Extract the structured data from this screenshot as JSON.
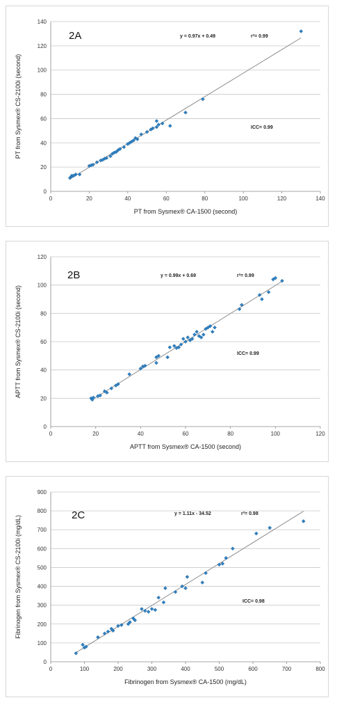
{
  "chart_data": [
    {
      "type": "scatter",
      "panel_label": "2A",
      "xlabel": "PT from Sysmex® CA-1500 (second)",
      "ylabel": "PT from Sysmex® CS-2100i (second)",
      "xlim": [
        0,
        140
      ],
      "ylim": [
        0,
        140
      ],
      "xticks": [
        0,
        20,
        40,
        60,
        80,
        100,
        120,
        140
      ],
      "yticks": [
        0,
        20,
        40,
        60,
        80,
        100,
        120,
        140
      ],
      "grid": "horizontal",
      "equation": "y = 0.97x + 0.49",
      "r2": "r²= 0.99",
      "icc": "ICC= 0.99",
      "color": "#2f7fbf",
      "trendline": {
        "slope": 0.97,
        "intercept": 0.49,
        "x_range": [
          10,
          130
        ]
      },
      "points": [
        [
          10,
          11
        ],
        [
          10.5,
          12
        ],
        [
          11,
          12.5
        ],
        [
          11,
          13
        ],
        [
          12,
          13
        ],
        [
          13,
          14
        ],
        [
          15,
          14
        ],
        [
          20,
          21
        ],
        [
          21,
          21.5
        ],
        [
          22,
          22
        ],
        [
          24,
          24
        ],
        [
          26,
          25.5
        ],
        [
          27,
          26
        ],
        [
          28,
          27
        ],
        [
          29,
          27.5
        ],
        [
          31,
          29
        ],
        [
          32,
          31
        ],
        [
          33,
          32
        ],
        [
          34,
          32.5
        ],
        [
          35,
          34
        ],
        [
          36,
          35
        ],
        [
          38,
          36.5
        ],
        [
          40,
          39
        ],
        [
          41,
          40
        ],
        [
          42,
          41
        ],
        [
          43,
          42
        ],
        [
          44,
          44
        ],
        [
          45,
          43
        ],
        [
          47,
          47
        ],
        [
          50,
          49
        ],
        [
          52,
          51
        ],
        [
          53,
          52
        ],
        [
          55,
          53
        ],
        [
          56,
          55
        ],
        [
          58,
          56
        ],
        [
          55,
          58
        ],
        [
          62,
          54
        ],
        [
          70,
          65
        ],
        [
          79,
          76
        ],
        [
          130,
          132
        ]
      ]
    },
    {
      "type": "scatter",
      "panel_label": "2B",
      "xlabel": "APTT from Sysmex® CA-1500 (second)",
      "ylabel": "APTT from Sysmex® CS-2100i (second)",
      "xlim": [
        0,
        120
      ],
      "ylim": [
        0,
        120
      ],
      "xticks": [
        0,
        20,
        40,
        60,
        80,
        100,
        120
      ],
      "yticks": [
        0,
        20,
        40,
        60,
        80,
        100,
        120
      ],
      "grid": "horizontal",
      "equation": "y = 0.99x + 0.69",
      "r2": "r²= 0.99",
      "icc": "ICC= 0.99",
      "color": "#2f7fbf",
      "trendline": {
        "slope": 0.99,
        "intercept": 0.69,
        "x_range": [
          18,
          103
        ]
      },
      "points": [
        [
          18,
          20
        ],
        [
          18.5,
          19
        ],
        [
          19,
          20.5
        ],
        [
          21,
          21.5
        ],
        [
          22,
          22
        ],
        [
          24,
          25
        ],
        [
          25,
          24
        ],
        [
          27,
          27
        ],
        [
          29,
          29
        ],
        [
          30,
          30
        ],
        [
          35,
          37
        ],
        [
          40,
          41
        ],
        [
          41,
          42.5
        ],
        [
          42,
          43
        ],
        [
          47,
          45
        ],
        [
          47,
          49
        ],
        [
          48,
          50
        ],
        [
          52,
          49
        ],
        [
          53,
          56
        ],
        [
          55,
          57
        ],
        [
          56,
          55.5
        ],
        [
          57,
          56
        ],
        [
          58,
          58
        ],
        [
          59,
          62
        ],
        [
          60,
          60
        ],
        [
          61,
          63
        ],
        [
          62,
          61
        ],
        [
          63,
          62
        ],
        [
          64,
          65
        ],
        [
          65,
          67
        ],
        [
          66,
          64
        ],
        [
          67,
          63
        ],
        [
          68,
          65
        ],
        [
          69,
          69
        ],
        [
          70,
          70
        ],
        [
          71,
          71
        ],
        [
          72,
          67
        ],
        [
          73,
          70
        ],
        [
          84,
          83
        ],
        [
          85,
          86
        ],
        [
          93,
          93
        ],
        [
          94,
          90
        ],
        [
          97,
          95
        ],
        [
          99,
          104
        ],
        [
          100,
          105
        ],
        [
          103,
          103
        ]
      ]
    },
    {
      "type": "scatter",
      "panel_label": "2C",
      "xlabel": "Fibrinogen from Sysmex® CA-1500 (mg/dL)",
      "ylabel": "Fibrinogen from Sysmex® CS-2100i (mg/dL)",
      "xlim": [
        0,
        800
      ],
      "ylim": [
        0,
        900
      ],
      "xticks": [
        0,
        100,
        200,
        300,
        400,
        500,
        600,
        700,
        800
      ],
      "yticks": [
        0,
        100,
        200,
        300,
        400,
        500,
        600,
        700,
        800,
        900
      ],
      "grid": "horizontal",
      "equation": "y = 1.11x - 34.52",
      "r2": "r²= 0.98",
      "icc": "ICC= 0.98",
      "color": "#2f7fbf",
      "trendline": {
        "slope": 1.11,
        "intercept": -34.52,
        "x_range": [
          70,
          750
        ]
      },
      "points": [
        [
          75,
          45
        ],
        [
          95,
          90
        ],
        [
          100,
          75
        ],
        [
          105,
          80
        ],
        [
          140,
          130
        ],
        [
          160,
          150
        ],
        [
          170,
          160
        ],
        [
          180,
          175
        ],
        [
          185,
          165
        ],
        [
          200,
          190
        ],
        [
          210,
          195
        ],
        [
          230,
          200
        ],
        [
          235,
          210
        ],
        [
          245,
          230
        ],
        [
          250,
          220
        ],
        [
          270,
          280
        ],
        [
          280,
          270
        ],
        [
          290,
          265
        ],
        [
          300,
          280
        ],
        [
          310,
          275
        ],
        [
          320,
          340
        ],
        [
          335,
          315
        ],
        [
          340,
          390
        ],
        [
          370,
          370
        ],
        [
          390,
          400
        ],
        [
          400,
          390
        ],
        [
          405,
          450
        ],
        [
          450,
          420
        ],
        [
          460,
          470
        ],
        [
          500,
          515
        ],
        [
          510,
          520
        ],
        [
          520,
          550
        ],
        [
          540,
          600
        ],
        [
          610,
          680
        ],
        [
          650,
          710
        ],
        [
          750,
          745
        ]
      ]
    }
  ]
}
